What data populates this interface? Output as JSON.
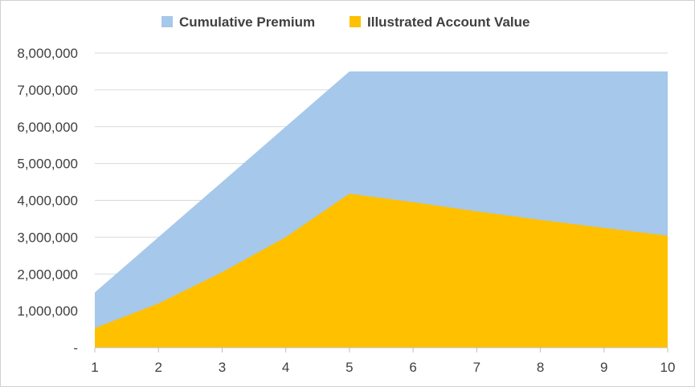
{
  "chart_data": {
    "type": "area",
    "title": "",
    "xlabel": "",
    "ylabel": "",
    "x": [
      1,
      2,
      3,
      4,
      5,
      6,
      7,
      8,
      9,
      10
    ],
    "x_tick_labels": [
      "1",
      "2",
      "3",
      "4",
      "5",
      "6",
      "7",
      "8",
      "9",
      "10"
    ],
    "y_tick_labels": [
      "-",
      "1,000,000",
      "2,000,000",
      "3,000,000",
      "4,000,000",
      "5,000,000",
      "6,000,000",
      "7,000,000",
      "8,000,000"
    ],
    "y_ticks": [
      0,
      1000000,
      2000000,
      3000000,
      4000000,
      5000000,
      6000000,
      7000000,
      8000000
    ],
    "ylim": [
      0,
      8000000
    ],
    "grid": true,
    "legend_position": "top-center",
    "series": [
      {
        "name": "Cumulative Premium",
        "color": "#A6C8EA",
        "values": [
          1500000,
          3000000,
          4500000,
          6000000,
          7500000,
          7500000,
          7500000,
          7500000,
          7500000,
          7500000
        ]
      },
      {
        "name": "Illustrated Account Value",
        "color": "#FFC000",
        "values": [
          530000,
          1200000,
          2050000,
          3000000,
          4180000,
          3950000,
          3700000,
          3470000,
          3250000,
          3040000
        ]
      }
    ]
  }
}
